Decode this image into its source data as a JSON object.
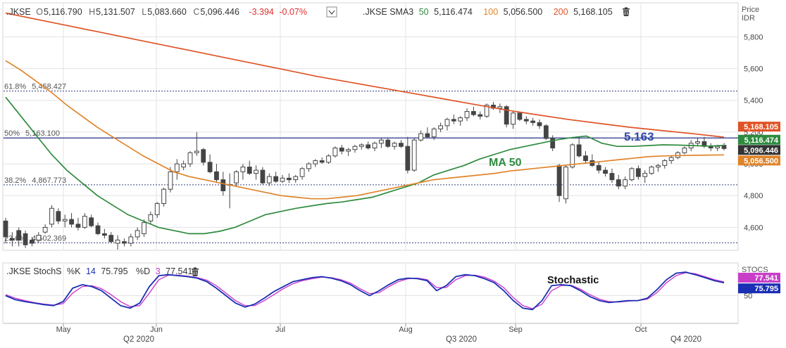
{
  "price_panel": {
    "symbol": ".JKSE",
    "open_label": "O",
    "open": "5,116.790",
    "high_label": "H",
    "high": "5,131.507",
    "low_label": "L",
    "low": "5,083.660",
    "close_label": "C",
    "close": "5,096.446",
    "change": "-3.394",
    "change_pct": "-0.07%",
    "sma_label": ".JKSE SMA3",
    "sma50_period": "50",
    "sma50_value": "5,116.474",
    "sma100_period": "100",
    "sma100_value": "5,056.500",
    "sma200_period": "200",
    "sma200_value": "5,168.105",
    "axis_title": "Price",
    "axis_unit": "IDR",
    "annotation_level": "5.163",
    "annotation_ma": "MA 50"
  },
  "stoch_panel": {
    "label": ".JKSE StochS",
    "k_label": "%K",
    "k_period": "14",
    "k_value": "75.795",
    "d_label": "%D",
    "d_period": "3",
    "d_value": "77.541",
    "axis_title": "STOCS",
    "annotation": "Stochastic"
  },
  "colors": {
    "background": "#ffffff",
    "grid": "#e3e3e3",
    "candle": "#444444",
    "sma50": "#2e8b3e",
    "sma100": "#e0842a",
    "sma200": "#e05326",
    "level_line": "#2e3a8c",
    "fib_line": "#35407a",
    "annotation_blue": "#3048a8",
    "stoch_k": "#1a2fb4",
    "stoch_d": "#c93ec9",
    "negative": "#e03030"
  },
  "chart_data": [
    {
      "type": "candlestick",
      "title": ".JKSE",
      "ylabel": "Price IDR",
      "ylim": [
        4460,
        6010
      ],
      "y_ticks": [
        4600,
        4800,
        5000,
        5200,
        5400,
        5600,
        5800
      ],
      "y_tick_labels": [
        "4,600",
        "4,800",
        "5,000",
        "5,200",
        "5,400",
        "5,600",
        "5,800"
      ],
      "x_month_labels": [
        "May",
        "Jun",
        "Jul",
        "Aug",
        "Sep",
        "Oct"
      ],
      "x_quarter_labels": [
        "Q2 2020",
        "Q3 2020",
        "Q4 2020"
      ],
      "grid": true,
      "last_values": {
        "sma200": "5,168.105",
        "sma50": "5,116.474",
        "close": "5,096.446",
        "sma100": "5,056.500"
      },
      "fibonacci_levels": [
        {
          "label": "61.8%",
          "value_label": "5,458.427",
          "value": 5458.427
        },
        {
          "label": "50%",
          "value_label": "5,163.100",
          "value": 5163.1
        },
        {
          "label": "38.2%",
          "value_label": "4,867.773",
          "value": 4867.773
        },
        {
          "label": "23.6%",
          "value_label": "4,502.369",
          "value": 4502.369
        }
      ],
      "horizontal_level": 5163,
      "candles": [
        [
          4640,
          4660,
          4500,
          4540
        ],
        [
          4530,
          4570,
          4480,
          4520
        ],
        [
          4580,
          4600,
          4480,
          4520
        ],
        [
          4560,
          4580,
          4470,
          4490
        ],
        [
          4520,
          4540,
          4480,
          4500
        ],
        [
          4520,
          4570,
          4500,
          4550
        ],
        [
          4570,
          4620,
          4560,
          4600
        ],
        [
          4620,
          4740,
          4600,
          4720
        ],
        [
          4700,
          4720,
          4620,
          4640
        ],
        [
          4640,
          4680,
          4600,
          4650
        ],
        [
          4650,
          4690,
          4600,
          4620
        ],
        [
          4620,
          4660,
          4580,
          4600
        ],
        [
          4600,
          4690,
          4590,
          4670
        ],
        [
          4660,
          4680,
          4600,
          4610
        ],
        [
          4610,
          4630,
          4550,
          4560
        ],
        [
          4560,
          4590,
          4530,
          4550
        ],
        [
          4550,
          4570,
          4500,
          4510
        ],
        [
          4500,
          4550,
          4460,
          4520
        ],
        [
          4510,
          4530,
          4480,
          4500
        ],
        [
          4500,
          4560,
          4480,
          4540
        ],
        [
          4540,
          4600,
          4520,
          4580
        ],
        [
          4560,
          4650,
          4540,
          4630
        ],
        [
          4640,
          4700,
          4620,
          4680
        ],
        [
          4680,
          4760,
          4660,
          4750
        ],
        [
          4750,
          4850,
          4730,
          4840
        ],
        [
          4840,
          4980,
          4820,
          4950
        ],
        [
          4950,
          5030,
          4900,
          5000
        ],
        [
          4980,
          5020,
          4960,
          5000
        ],
        [
          5000,
          5080,
          4980,
          5070
        ],
        [
          5070,
          5200,
          5050,
          5080
        ],
        [
          5090,
          5100,
          4990,
          5010
        ],
        [
          5010,
          5060,
          4940,
          4950
        ],
        [
          4950,
          5000,
          4880,
          4900
        ],
        [
          4900,
          4950,
          4800,
          4830
        ],
        [
          4870,
          4940,
          4720,
          4870
        ],
        [
          4880,
          4960,
          4860,
          4950
        ],
        [
          4950,
          5000,
          4900,
          4980
        ],
        [
          4980,
          5020,
          4930,
          4940
        ],
        [
          4940,
          4990,
          4900,
          4960
        ],
        [
          4960,
          4980,
          4870,
          4880
        ],
        [
          4880,
          4940,
          4860,
          4920
        ],
        [
          4920,
          4950,
          4880,
          4890
        ],
        [
          4890,
          4930,
          4880,
          4910
        ],
        [
          4910,
          4940,
          4880,
          4900
        ],
        [
          4900,
          4930,
          4880,
          4920
        ],
        [
          4920,
          4980,
          4900,
          4970
        ],
        [
          4970,
          5010,
          4950,
          5000
        ],
        [
          5000,
          5030,
          4980,
          5020
        ],
        [
          5020,
          5040,
          5000,
          5010
        ],
        [
          5010,
          5060,
          5000,
          5050
        ],
        [
          5050,
          5110,
          5040,
          5100
        ],
        [
          5100,
          5120,
          5060,
          5080
        ],
        [
          5080,
          5100,
          5050,
          5090
        ],
        [
          5090,
          5120,
          5070,
          5110
        ],
        [
          5110,
          5130,
          5090,
          5120
        ],
        [
          5120,
          5140,
          5090,
          5100
        ],
        [
          5100,
          5140,
          5080,
          5130
        ],
        [
          5130,
          5160,
          5100,
          5150
        ],
        [
          5150,
          5160,
          5100,
          5110
        ],
        [
          5110,
          5140,
          5090,
          5130
        ],
        [
          5130,
          5150,
          5100,
          5110
        ],
        [
          5110,
          5170,
          4940,
          4960
        ],
        [
          4960,
          5160,
          4950,
          5150
        ],
        [
          5150,
          5210,
          5140,
          5190
        ],
        [
          5190,
          5230,
          5160,
          5170
        ],
        [
          5170,
          5230,
          5150,
          5220
        ],
        [
          5220,
          5260,
          5200,
          5240
        ],
        [
          5240,
          5290,
          5210,
          5280
        ],
        [
          5280,
          5310,
          5250,
          5270
        ],
        [
          5270,
          5300,
          5240,
          5290
        ],
        [
          5290,
          5350,
          5270,
          5330
        ],
        [
          5330,
          5360,
          5300,
          5310
        ],
        [
          5310,
          5330,
          5280,
          5300
        ],
        [
          5300,
          5380,
          5290,
          5370
        ],
        [
          5370,
          5390,
          5340,
          5350
        ],
        [
          5350,
          5380,
          5320,
          5360
        ],
        [
          5360,
          5370,
          5230,
          5250
        ],
        [
          5250,
          5330,
          5220,
          5320
        ],
        [
          5320,
          5330,
          5270,
          5280
        ],
        [
          5280,
          5300,
          5250,
          5270
        ],
        [
          5270,
          5290,
          5240,
          5260
        ],
        [
          5260,
          5280,
          5220,
          5240
        ],
        [
          5240,
          5250,
          5150,
          5160
        ],
        [
          5160,
          5180,
          5080,
          5100
        ],
        [
          4990,
          5000,
          4760,
          4800
        ],
        [
          4780,
          4990,
          4750,
          4980
        ],
        [
          4980,
          5130,
          4970,
          5120
        ],
        [
          5120,
          5160,
          5040,
          5050
        ],
        [
          5050,
          5080,
          5000,
          5020
        ],
        [
          5020,
          5060,
          4980,
          4990
        ],
        [
          4990,
          5010,
          4940,
          4960
        ],
        [
          4960,
          4980,
          4920,
          4940
        ],
        [
          4940,
          4970,
          4880,
          4900
        ],
        [
          4900,
          4930,
          4840,
          4860
        ],
        [
          4860,
          4920,
          4840,
          4900
        ],
        [
          4900,
          4980,
          4890,
          4970
        ],
        [
          4970,
          4990,
          4900,
          4920
        ],
        [
          4920,
          4960,
          4880,
          4940
        ],
        [
          4940,
          4990,
          4930,
          4980
        ],
        [
          4980,
          5000,
          4950,
          4990
        ],
        [
          4990,
          5030,
          4970,
          5020
        ],
        [
          5020,
          5050,
          5000,
          5040
        ],
        [
          5040,
          5080,
          5030,
          5070
        ],
        [
          5070,
          5110,
          5060,
          5100
        ],
        [
          5100,
          5150,
          5080,
          5130
        ],
        [
          5130,
          5160,
          5110,
          5140
        ],
        [
          5140,
          5170,
          5100,
          5110
        ],
        [
          5110,
          5130,
          5080,
          5100
        ],
        [
          5100,
          5120,
          5080,
          5110
        ],
        [
          5116.79,
          5131.507,
          5083.66,
          5096.446
        ]
      ],
      "series": [
        {
          "name": "SMA3 50",
          "values": [
            5420,
            5300,
            5180,
            5060,
            4960,
            4880,
            4800,
            4740,
            4680,
            4640,
            4600,
            4580,
            4560,
            4560,
            4575,
            4600,
            4640,
            4680,
            4700,
            4720,
            4735,
            4750,
            4760,
            4775,
            4790,
            4820,
            4850,
            4880,
            4930,
            4960,
            4990,
            5030,
            5060,
            5090,
            5110,
            5130,
            5150,
            5165,
            5175,
            5130,
            5110,
            5110,
            5115,
            5120,
            5118,
            5115,
            5112,
            5116
          ]
        },
        {
          "name": "SMA3 100",
          "values": [
            5650,
            5590,
            5520,
            5450,
            5370,
            5300,
            5230,
            5170,
            5110,
            5050,
            5000,
            4950,
            4920,
            4900,
            4880,
            4860,
            4840,
            4820,
            4800,
            4790,
            4780,
            4780,
            4790,
            4800,
            4820,
            4840,
            4860,
            4880,
            4900,
            4910,
            4920,
            4930,
            4940,
            4955,
            4965,
            4975,
            4985,
            4995,
            5005,
            5015,
            5025,
            5035,
            5045,
            5050,
            5052,
            5054,
            5055,
            5056.5
          ]
        },
        {
          "name": "SMA3 200",
          "values": [
            5950,
            5910,
            5870,
            5830,
            5790,
            5750,
            5710,
            5670,
            5630,
            5590,
            5550,
            5515,
            5480,
            5445,
            5410,
            5375,
            5340,
            5310,
            5280,
            5255,
            5230,
            5210,
            5190,
            5168.105
          ]
        }
      ]
    },
    {
      "type": "line",
      "title": ".JKSE StochS",
      "ylabel": "STOCS",
      "ylim": [
        0,
        100
      ],
      "y_ticks": [
        50
      ],
      "y_tick_labels": [
        "50"
      ],
      "series": [
        {
          "name": "%K",
          "values": [
            50,
            42,
            38,
            35,
            32,
            30,
            38,
            65,
            72,
            68,
            60,
            45,
            30,
            25,
            35,
            68,
            90,
            92,
            90,
            88,
            85,
            78,
            65,
            50,
            35,
            27,
            33,
            45,
            58,
            68,
            78,
            82,
            86,
            88,
            85,
            80,
            72,
            60,
            50,
            60,
            72,
            82,
            85,
            84,
            80,
            60,
            70,
            88,
            92,
            90,
            84,
            76,
            60,
            40,
            25,
            22,
            40,
            70,
            72,
            70,
            60,
            48,
            40,
            36,
            38,
            40,
            40,
            45,
            62,
            82,
            95,
            97,
            92,
            86,
            80,
            75.795
          ]
        },
        {
          "name": "%D",
          "values": [
            52,
            45,
            40,
            36,
            33,
            31,
            34,
            55,
            68,
            70,
            64,
            52,
            38,
            28,
            30,
            55,
            82,
            91,
            91,
            89,
            86,
            81,
            70,
            55,
            40,
            30,
            30,
            40,
            52,
            64,
            74,
            80,
            84,
            87,
            86,
            82,
            75,
            64,
            54,
            56,
            68,
            78,
            84,
            85,
            82,
            66,
            66,
            82,
            90,
            91,
            87,
            79,
            66,
            46,
            30,
            24,
            33,
            60,
            70,
            71,
            63,
            52,
            43,
            38,
            37,
            39,
            40,
            43,
            56,
            76,
            90,
            96,
            94,
            88,
            82,
            77.541
          ]
        }
      ]
    }
  ]
}
